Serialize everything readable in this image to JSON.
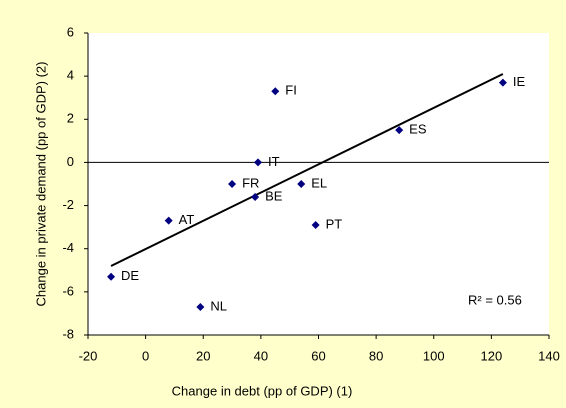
{
  "chart_data": {
    "type": "scatter",
    "x_label": "Change in debt (pp of GDP) (1)",
    "y_label": "Change in private demand (pp of GDP) (2)",
    "series": [
      {
        "color": "#000080",
        "labels": [
          "DE",
          "NL",
          "AT",
          "FR",
          "BE",
          "IT",
          "EL",
          "PT",
          "FI",
          "ES",
          "IE"
        ],
        "x": [
          -12,
          19,
          8,
          30,
          38,
          39,
          54,
          59,
          45,
          88,
          124
        ],
        "values": [
          -5.3,
          -6.7,
          -2.7,
          -1,
          -1.6,
          0,
          -1,
          -2.9,
          3.3,
          1.5,
          3.7
        ]
      }
    ],
    "trendline": {
      "x": [
        -12,
        124
      ],
      "values": [
        -4.8,
        4.1
      ]
    },
    "annotation": "R² = 0.56",
    "xlim": [
      -20,
      140
    ],
    "xticks": [
      -20,
      0,
      20,
      40,
      60,
      80,
      100,
      120,
      140
    ],
    "ylim": [
      -8,
      6
    ],
    "yticks": [
      -8,
      -6,
      -4,
      -2,
      0,
      2,
      4,
      6
    ]
  }
}
